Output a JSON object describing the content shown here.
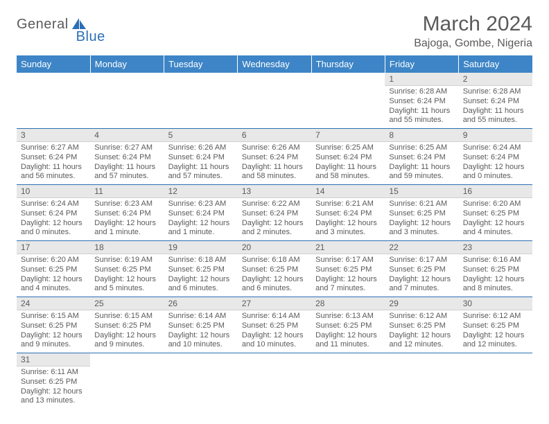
{
  "logo": {
    "general": "General",
    "blue": "Blue"
  },
  "title": "March 2024",
  "location": "Bajoga, Gombe, Nigeria",
  "colors": {
    "header_bg": "#3d85c6",
    "header_text": "#ffffff",
    "day_number_bg": "#e8e8e8",
    "cell_border": "#2a6fb5",
    "text": "#5a5a5a",
    "logo_accent": "#2a6fb5"
  },
  "weekdays": [
    "Sunday",
    "Monday",
    "Tuesday",
    "Wednesday",
    "Thursday",
    "Friday",
    "Saturday"
  ],
  "weeks": [
    [
      null,
      null,
      null,
      null,
      null,
      {
        "n": "1",
        "sunrise": "Sunrise: 6:28 AM",
        "sunset": "Sunset: 6:24 PM",
        "daylight": "Daylight: 11 hours and 55 minutes."
      },
      {
        "n": "2",
        "sunrise": "Sunrise: 6:28 AM",
        "sunset": "Sunset: 6:24 PM",
        "daylight": "Daylight: 11 hours and 55 minutes."
      }
    ],
    [
      {
        "n": "3",
        "sunrise": "Sunrise: 6:27 AM",
        "sunset": "Sunset: 6:24 PM",
        "daylight": "Daylight: 11 hours and 56 minutes."
      },
      {
        "n": "4",
        "sunrise": "Sunrise: 6:27 AM",
        "sunset": "Sunset: 6:24 PM",
        "daylight": "Daylight: 11 hours and 57 minutes."
      },
      {
        "n": "5",
        "sunrise": "Sunrise: 6:26 AM",
        "sunset": "Sunset: 6:24 PM",
        "daylight": "Daylight: 11 hours and 57 minutes."
      },
      {
        "n": "6",
        "sunrise": "Sunrise: 6:26 AM",
        "sunset": "Sunset: 6:24 PM",
        "daylight": "Daylight: 11 hours and 58 minutes."
      },
      {
        "n": "7",
        "sunrise": "Sunrise: 6:25 AM",
        "sunset": "Sunset: 6:24 PM",
        "daylight": "Daylight: 11 hours and 58 minutes."
      },
      {
        "n": "8",
        "sunrise": "Sunrise: 6:25 AM",
        "sunset": "Sunset: 6:24 PM",
        "daylight": "Daylight: 11 hours and 59 minutes."
      },
      {
        "n": "9",
        "sunrise": "Sunrise: 6:24 AM",
        "sunset": "Sunset: 6:24 PM",
        "daylight": "Daylight: 12 hours and 0 minutes."
      }
    ],
    [
      {
        "n": "10",
        "sunrise": "Sunrise: 6:24 AM",
        "sunset": "Sunset: 6:24 PM",
        "daylight": "Daylight: 12 hours and 0 minutes."
      },
      {
        "n": "11",
        "sunrise": "Sunrise: 6:23 AM",
        "sunset": "Sunset: 6:24 PM",
        "daylight": "Daylight: 12 hours and 1 minute."
      },
      {
        "n": "12",
        "sunrise": "Sunrise: 6:23 AM",
        "sunset": "Sunset: 6:24 PM",
        "daylight": "Daylight: 12 hours and 1 minute."
      },
      {
        "n": "13",
        "sunrise": "Sunrise: 6:22 AM",
        "sunset": "Sunset: 6:24 PM",
        "daylight": "Daylight: 12 hours and 2 minutes."
      },
      {
        "n": "14",
        "sunrise": "Sunrise: 6:21 AM",
        "sunset": "Sunset: 6:24 PM",
        "daylight": "Daylight: 12 hours and 3 minutes."
      },
      {
        "n": "15",
        "sunrise": "Sunrise: 6:21 AM",
        "sunset": "Sunset: 6:25 PM",
        "daylight": "Daylight: 12 hours and 3 minutes."
      },
      {
        "n": "16",
        "sunrise": "Sunrise: 6:20 AM",
        "sunset": "Sunset: 6:25 PM",
        "daylight": "Daylight: 12 hours and 4 minutes."
      }
    ],
    [
      {
        "n": "17",
        "sunrise": "Sunrise: 6:20 AM",
        "sunset": "Sunset: 6:25 PM",
        "daylight": "Daylight: 12 hours and 4 minutes."
      },
      {
        "n": "18",
        "sunrise": "Sunrise: 6:19 AM",
        "sunset": "Sunset: 6:25 PM",
        "daylight": "Daylight: 12 hours and 5 minutes."
      },
      {
        "n": "19",
        "sunrise": "Sunrise: 6:18 AM",
        "sunset": "Sunset: 6:25 PM",
        "daylight": "Daylight: 12 hours and 6 minutes."
      },
      {
        "n": "20",
        "sunrise": "Sunrise: 6:18 AM",
        "sunset": "Sunset: 6:25 PM",
        "daylight": "Daylight: 12 hours and 6 minutes."
      },
      {
        "n": "21",
        "sunrise": "Sunrise: 6:17 AM",
        "sunset": "Sunset: 6:25 PM",
        "daylight": "Daylight: 12 hours and 7 minutes."
      },
      {
        "n": "22",
        "sunrise": "Sunrise: 6:17 AM",
        "sunset": "Sunset: 6:25 PM",
        "daylight": "Daylight: 12 hours and 7 minutes."
      },
      {
        "n": "23",
        "sunrise": "Sunrise: 6:16 AM",
        "sunset": "Sunset: 6:25 PM",
        "daylight": "Daylight: 12 hours and 8 minutes."
      }
    ],
    [
      {
        "n": "24",
        "sunrise": "Sunrise: 6:15 AM",
        "sunset": "Sunset: 6:25 PM",
        "daylight": "Daylight: 12 hours and 9 minutes."
      },
      {
        "n": "25",
        "sunrise": "Sunrise: 6:15 AM",
        "sunset": "Sunset: 6:25 PM",
        "daylight": "Daylight: 12 hours and 9 minutes."
      },
      {
        "n": "26",
        "sunrise": "Sunrise: 6:14 AM",
        "sunset": "Sunset: 6:25 PM",
        "daylight": "Daylight: 12 hours and 10 minutes."
      },
      {
        "n": "27",
        "sunrise": "Sunrise: 6:14 AM",
        "sunset": "Sunset: 6:25 PM",
        "daylight": "Daylight: 12 hours and 10 minutes."
      },
      {
        "n": "28",
        "sunrise": "Sunrise: 6:13 AM",
        "sunset": "Sunset: 6:25 PM",
        "daylight": "Daylight: 12 hours and 11 minutes."
      },
      {
        "n": "29",
        "sunrise": "Sunrise: 6:12 AM",
        "sunset": "Sunset: 6:25 PM",
        "daylight": "Daylight: 12 hours and 12 minutes."
      },
      {
        "n": "30",
        "sunrise": "Sunrise: 6:12 AM",
        "sunset": "Sunset: 6:25 PM",
        "daylight": "Daylight: 12 hours and 12 minutes."
      }
    ],
    [
      {
        "n": "31",
        "sunrise": "Sunrise: 6:11 AM",
        "sunset": "Sunset: 6:25 PM",
        "daylight": "Daylight: 12 hours and 13 minutes."
      },
      null,
      null,
      null,
      null,
      null,
      null
    ]
  ]
}
